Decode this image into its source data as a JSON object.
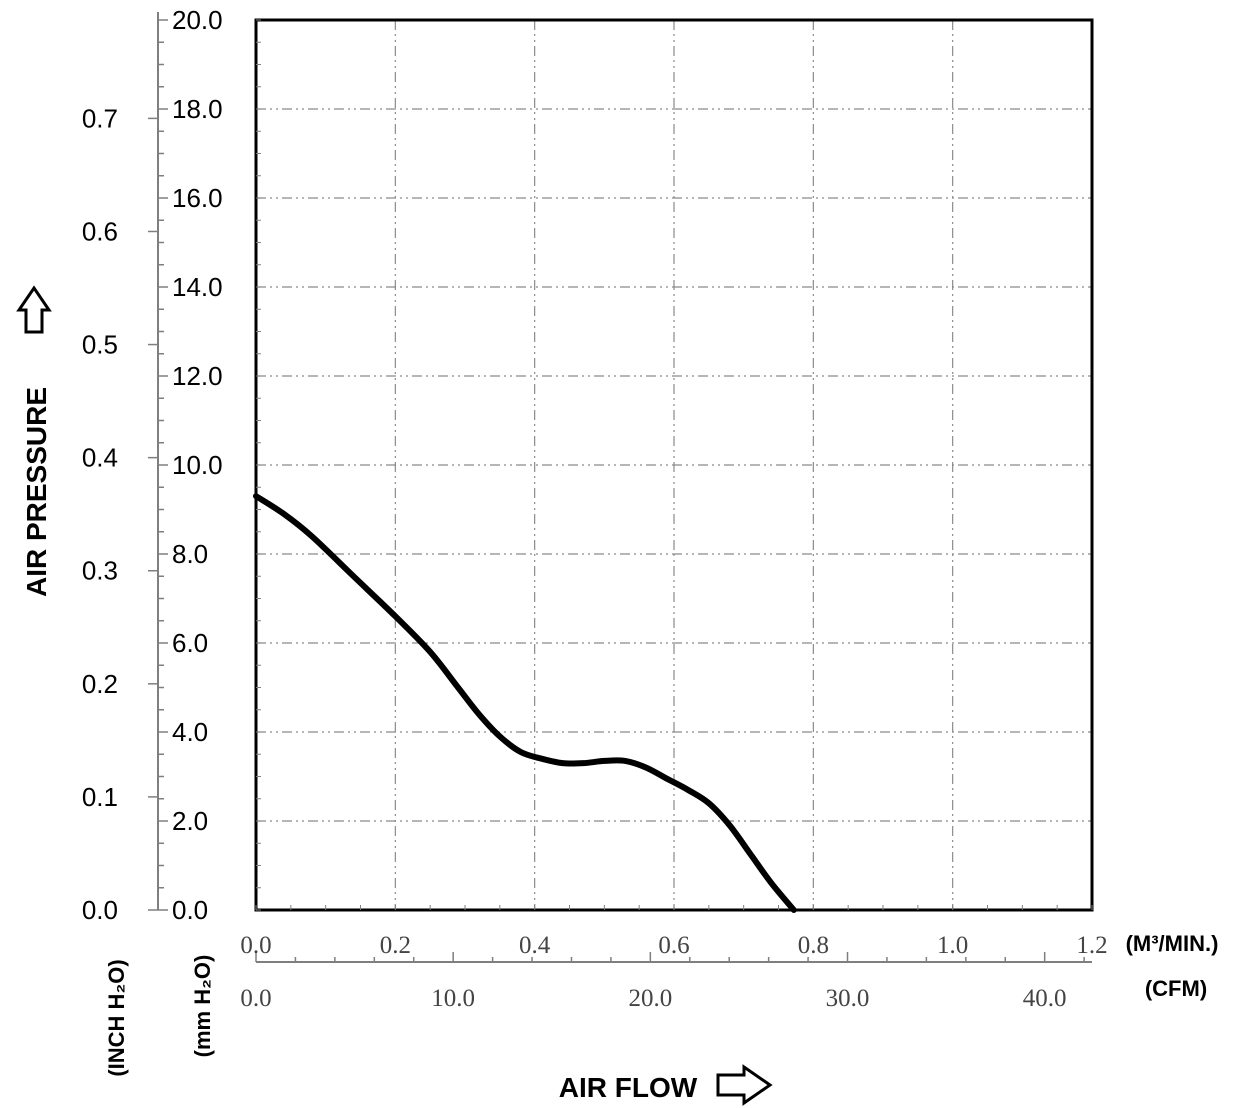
{
  "chart_data": {
    "type": "line",
    "ylabel": "AIR PRESSURE",
    "xlabel": "AIR FLOW",
    "y_axes": {
      "inch": {
        "unit_label": "(INCH H₂O)",
        "ylim": [
          0.0,
          0.787
        ],
        "ticks": [
          "0.0",
          "0.1",
          "0.2",
          "0.3",
          "0.4",
          "0.5",
          "0.6",
          "0.7"
        ]
      },
      "mm": {
        "unit_label": "(mm H₂O)",
        "ylim": [
          0.0,
          20.0
        ],
        "ticks": [
          "0.0",
          "2.0",
          "4.0",
          "6.0",
          "8.0",
          "10.0",
          "12.0",
          "14.0",
          "16.0",
          "18.0",
          "20.0"
        ]
      }
    },
    "x_axes": {
      "m3min": {
        "unit_label": "(M³/MIN.)",
        "xlim": [
          0.0,
          1.2
        ],
        "ticks": [
          "0.0",
          "0.2",
          "0.4",
          "0.6",
          "0.8",
          "1.0",
          "1.2"
        ]
      },
      "cfm": {
        "unit_label": "(CFM)",
        "xlim": [
          0.0,
          42.4
        ],
        "ticks": [
          "0.0",
          "10.0",
          "20.0",
          "30.0",
          "40.0"
        ]
      }
    },
    "grid": true,
    "series": [
      {
        "x_unit": "M3/MIN",
        "y_unit": "mmH2O",
        "x": [
          0.0,
          0.04,
          0.08,
          0.14,
          0.2,
          0.25,
          0.29,
          0.32,
          0.35,
          0.38,
          0.41,
          0.44,
          0.47,
          0.5,
          0.53,
          0.56,
          0.59,
          0.62,
          0.65,
          0.68,
          0.71,
          0.74,
          0.772
        ],
        "y": [
          9.3,
          8.9,
          8.4,
          7.5,
          6.6,
          5.8,
          5.0,
          4.4,
          3.9,
          3.55,
          3.4,
          3.3,
          3.3,
          3.35,
          3.35,
          3.2,
          2.95,
          2.7,
          2.4,
          1.9,
          1.25,
          0.6,
          0.0
        ]
      }
    ]
  }
}
